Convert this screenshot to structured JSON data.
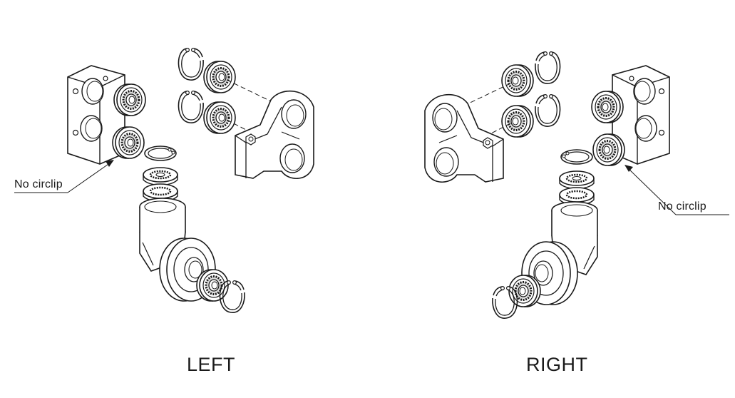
{
  "annotations": {
    "left_callout": "No circlip",
    "right_callout": "No circlip"
  },
  "captions": {
    "left": "LEFT",
    "right": "RIGHT"
  },
  "colors": {
    "line": "#1a1a1a",
    "fill": "#ffffff",
    "shade": "#bcbcbc"
  }
}
